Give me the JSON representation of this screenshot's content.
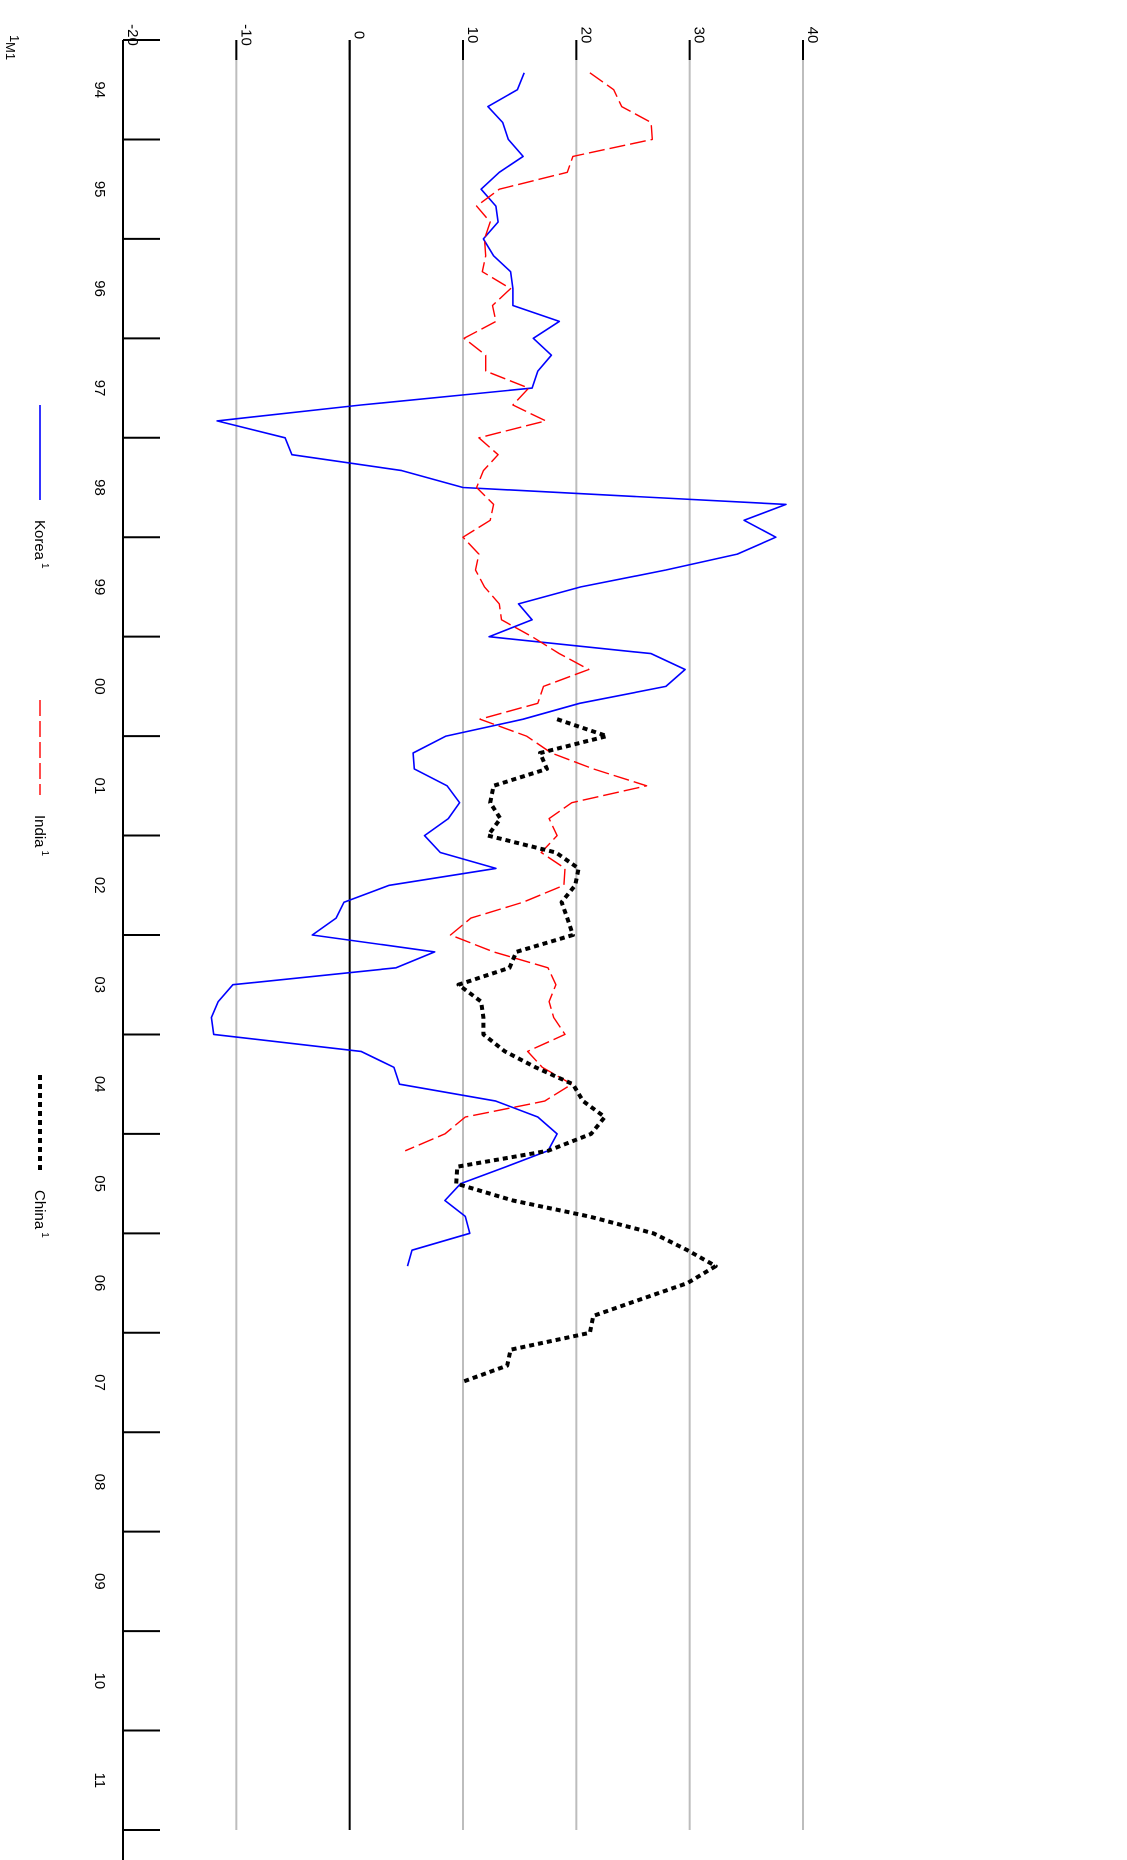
{
  "chart_data": {
    "type": "line",
    "orientation": "rotated-90-clockwise",
    "x_ticks": [
      "94",
      "95",
      "96",
      "97",
      "98",
      "99",
      "00",
      "01",
      "02",
      "03",
      "04",
      "05",
      "06",
      "07",
      "08",
      "09",
      "10",
      "11"
    ],
    "y_ticks": [
      -20,
      -10,
      0,
      10,
      20,
      30,
      40
    ],
    "ylim": [
      -20,
      40
    ],
    "xlim": [
      1994.0,
      2012.0
    ],
    "grid": "horizontal",
    "zero_line": true,
    "series": [
      {
        "name": "Korea",
        "superscript": "1",
        "color": "#0000ff",
        "style": "solid",
        "points": [
          [
            1994.33,
            15.4
          ],
          [
            1994.5,
            14.8
          ],
          [
            1994.67,
            12.2
          ],
          [
            1994.83,
            13.5
          ],
          [
            1995.0,
            14.0
          ],
          [
            1995.17,
            15.3
          ],
          [
            1995.33,
            13.2
          ],
          [
            1995.5,
            11.6
          ],
          [
            1995.67,
            12.9
          ],
          [
            1995.83,
            13.1
          ],
          [
            1996.0,
            11.8
          ],
          [
            1996.17,
            12.7
          ],
          [
            1996.33,
            14.2
          ],
          [
            1996.5,
            14.4
          ],
          [
            1996.67,
            14.4
          ],
          [
            1996.83,
            18.5
          ],
          [
            1997.0,
            16.2
          ],
          [
            1997.17,
            17.8
          ],
          [
            1997.33,
            16.6
          ],
          [
            1997.5,
            16.1
          ],
          [
            1997.67,
            1.0
          ],
          [
            1997.83,
            -11.7
          ],
          [
            1998.0,
            -5.7
          ],
          [
            1998.17,
            -5.1
          ],
          [
            1998.33,
            4.6
          ],
          [
            1998.5,
            10.0
          ],
          [
            1998.67,
            38.5
          ],
          [
            1998.83,
            34.8
          ],
          [
            1999.0,
            37.6
          ],
          [
            1999.17,
            34.2
          ],
          [
            1999.33,
            27.9
          ],
          [
            1999.5,
            20.4
          ],
          [
            1999.67,
            14.9
          ],
          [
            1999.83,
            16.1
          ],
          [
            2000.0,
            12.3
          ],
          [
            2000.17,
            26.6
          ],
          [
            2000.33,
            29.6
          ],
          [
            2000.5,
            27.9
          ],
          [
            2000.67,
            20.3
          ],
          [
            2000.83,
            15.3
          ],
          [
            2001.0,
            8.5
          ],
          [
            2001.17,
            5.6
          ],
          [
            2001.33,
            5.7
          ],
          [
            2001.5,
            8.6
          ],
          [
            2001.67,
            9.7
          ],
          [
            2001.83,
            8.7
          ],
          [
            2002.0,
            6.6
          ],
          [
            2002.17,
            8.0
          ],
          [
            2002.33,
            12.9
          ],
          [
            2002.5,
            3.5
          ],
          [
            2002.67,
            -0.5
          ],
          [
            2002.83,
            -1.2
          ],
          [
            2003.0,
            -3.3
          ],
          [
            2003.17,
            7.5
          ],
          [
            2003.33,
            4.1
          ],
          [
            2003.5,
            -10.3
          ],
          [
            2003.67,
            -11.6
          ],
          [
            2003.83,
            -12.2
          ],
          [
            2004.0,
            -12.0
          ],
          [
            2004.17,
            1.0
          ],
          [
            2004.33,
            3.9
          ],
          [
            2004.5,
            4.4
          ],
          [
            2004.67,
            12.9
          ],
          [
            2004.83,
            16.6
          ],
          [
            2005.0,
            18.3
          ],
          [
            2005.17,
            17.5
          ],
          [
            2005.33,
            13.8
          ],
          [
            2005.5,
            9.8
          ],
          [
            2005.67,
            8.4
          ],
          [
            2005.83,
            10.2
          ],
          [
            2006.0,
            10.6
          ],
          [
            2006.17,
            5.5
          ],
          [
            2006.33,
            5.1
          ]
        ]
      },
      {
        "name": "India",
        "superscript": "1",
        "color": "#ff0000",
        "style": "dashed",
        "points": [
          [
            1994.33,
            21.2
          ],
          [
            1994.5,
            23.3
          ],
          [
            1994.67,
            24.0
          ],
          [
            1994.83,
            26.6
          ],
          [
            1995.0,
            26.7
          ],
          [
            1995.17,
            19.7
          ],
          [
            1995.33,
            19.2
          ],
          [
            1995.5,
            13.2
          ],
          [
            1995.67,
            11.2
          ],
          [
            1995.83,
            12.4
          ],
          [
            1996.0,
            11.9
          ],
          [
            1996.17,
            12.0
          ],
          [
            1996.33,
            11.7
          ],
          [
            1996.5,
            14.2
          ],
          [
            1996.67,
            12.6
          ],
          [
            1996.83,
            12.9
          ],
          [
            1997.0,
            10.1
          ],
          [
            1997.17,
            12.0
          ],
          [
            1997.33,
            12.0
          ],
          [
            1997.5,
            15.8
          ],
          [
            1997.67,
            14.4
          ],
          [
            1997.83,
            17.3
          ],
          [
            1998.0,
            11.4
          ],
          [
            1998.17,
            13.1
          ],
          [
            1998.33,
            11.8
          ],
          [
            1998.5,
            11.2
          ],
          [
            1998.67,
            12.7
          ],
          [
            1998.83,
            12.4
          ],
          [
            1999.0,
            10.0
          ],
          [
            1999.17,
            11.4
          ],
          [
            1999.33,
            11.1
          ],
          [
            1999.5,
            11.9
          ],
          [
            1999.67,
            13.2
          ],
          [
            1999.83,
            13.4
          ],
          [
            2000.0,
            16.1
          ],
          [
            2000.17,
            18.5
          ],
          [
            2000.33,
            21.1
          ],
          [
            2000.5,
            17.1
          ],
          [
            2000.67,
            16.6
          ],
          [
            2000.83,
            11.5
          ],
          [
            2001.0,
            15.6
          ],
          [
            2001.17,
            17.8
          ],
          [
            2001.33,
            21.5
          ],
          [
            2001.5,
            26.2
          ],
          [
            2001.67,
            19.6
          ],
          [
            2001.83,
            17.6
          ],
          [
            2002.0,
            18.3
          ],
          [
            2002.17,
            16.9
          ],
          [
            2002.33,
            19.0
          ],
          [
            2002.5,
            18.9
          ],
          [
            2002.67,
            15.3
          ],
          [
            2002.83,
            10.7
          ],
          [
            2003.0,
            8.9
          ],
          [
            2003.17,
            12.7
          ],
          [
            2003.33,
            17.5
          ],
          [
            2003.5,
            18.2
          ],
          [
            2003.67,
            17.6
          ],
          [
            2003.83,
            18.0
          ],
          [
            2004.0,
            19.0
          ],
          [
            2004.17,
            15.7
          ],
          [
            2004.33,
            17.0
          ],
          [
            2004.5,
            19.6
          ],
          [
            2004.67,
            17.2
          ],
          [
            2004.83,
            10.2
          ],
          [
            2005.0,
            8.4
          ],
          [
            2005.17,
            4.9
          ]
        ]
      },
      {
        "name": "China",
        "superscript": "1",
        "color": "#000000",
        "style": "dotted-heavy",
        "points": [
          [
            2000.83,
            18.3
          ],
          [
            2001.0,
            22.7
          ],
          [
            2001.17,
            16.8
          ],
          [
            2001.33,
            17.4
          ],
          [
            2001.5,
            12.7
          ],
          [
            2001.67,
            12.4
          ],
          [
            2001.83,
            13.3
          ],
          [
            2002.0,
            12.2
          ],
          [
            2002.17,
            18.2
          ],
          [
            2002.33,
            20.2
          ],
          [
            2002.5,
            19.9
          ],
          [
            2002.67,
            18.7
          ],
          [
            2002.83,
            19.2
          ],
          [
            2003.0,
            19.7
          ],
          [
            2003.17,
            14.7
          ],
          [
            2003.33,
            14.1
          ],
          [
            2003.5,
            9.6
          ],
          [
            2003.67,
            11.6
          ],
          [
            2003.83,
            11.8
          ],
          [
            2004.0,
            11.8
          ],
          [
            2004.17,
            13.7
          ],
          [
            2004.33,
            16.4
          ],
          [
            2004.5,
            19.7
          ],
          [
            2004.67,
            20.6
          ],
          [
            2004.83,
            22.5
          ],
          [
            2005.0,
            21.3
          ],
          [
            2005.17,
            17.5
          ],
          [
            2005.33,
            9.5
          ],
          [
            2005.5,
            9.4
          ],
          [
            2005.67,
            14.4
          ],
          [
            2005.83,
            21.1
          ],
          [
            2006.0,
            26.8
          ],
          [
            2006.17,
            29.8
          ],
          [
            2006.33,
            32.3
          ],
          [
            2006.5,
            29.8
          ],
          [
            2006.67,
            25.5
          ],
          [
            2006.83,
            21.5
          ],
          [
            2007.0,
            21.2
          ],
          [
            2007.17,
            14.2
          ],
          [
            2007.33,
            13.9
          ],
          [
            2007.5,
            9.8
          ]
        ]
      }
    ],
    "legend": {
      "placement": "bottom",
      "entries": [
        {
          "label": "Korea",
          "superscript": "1"
        },
        {
          "label": "India",
          "superscript": "1"
        },
        {
          "label": "China",
          "superscript": "1"
        }
      ]
    },
    "footnote": {
      "marker": "1",
      "text": "M1"
    }
  }
}
